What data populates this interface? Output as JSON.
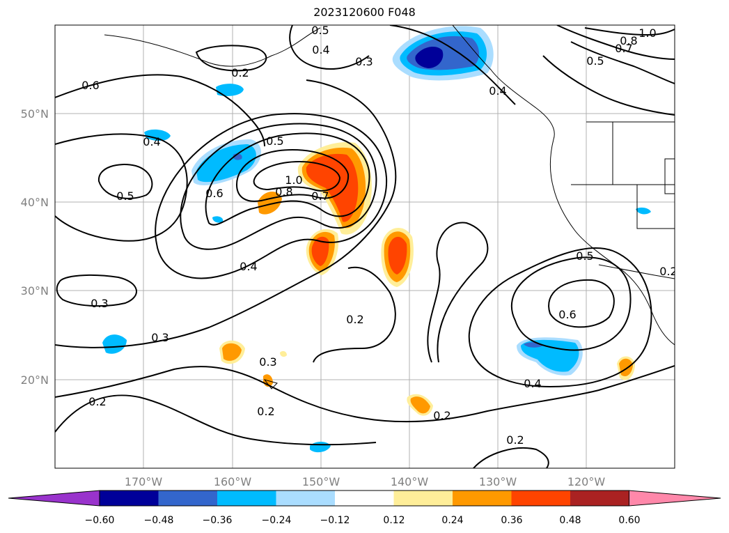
{
  "title": "2023120600 F048",
  "map": {
    "longitude_labels": [
      "170°W",
      "160°W",
      "150°W",
      "140°W",
      "130°W",
      "120°W"
    ],
    "latitude_labels": [
      "50°N",
      "40°N",
      "30°N",
      "20°N"
    ],
    "gridlines": true,
    "contour_labels": [
      "0.5",
      "0.4",
      "0.3",
      "0.2",
      "0.4",
      "1.0",
      "0.8",
      "0.7",
      "0.6",
      "0.5",
      "0.4",
      "0.5",
      "0.6",
      "0.8",
      "1.0",
      "0.7",
      "0.5",
      "0.4",
      "0.3",
      "0.3",
      "0.2",
      "0.3",
      "0.2",
      "0.2",
      "0.2",
      "0.2",
      "0.4",
      "0.6",
      "0.5",
      "0.2"
    ]
  },
  "colorbar": {
    "tick_labels": [
      "−0.60",
      "−0.48",
      "−0.36",
      "−0.24",
      "−0.12",
      "0.12",
      "0.24",
      "0.36",
      "0.48",
      "0.60"
    ],
    "colors": [
      "#9933cc",
      "#000099",
      "#3366cc",
      "#00bbff",
      "#aaddff",
      "#ffffff",
      "#ffee99",
      "#ff9900",
      "#ff4400",
      "#aa2222",
      "#ff88aa"
    ],
    "extend": "both"
  }
}
